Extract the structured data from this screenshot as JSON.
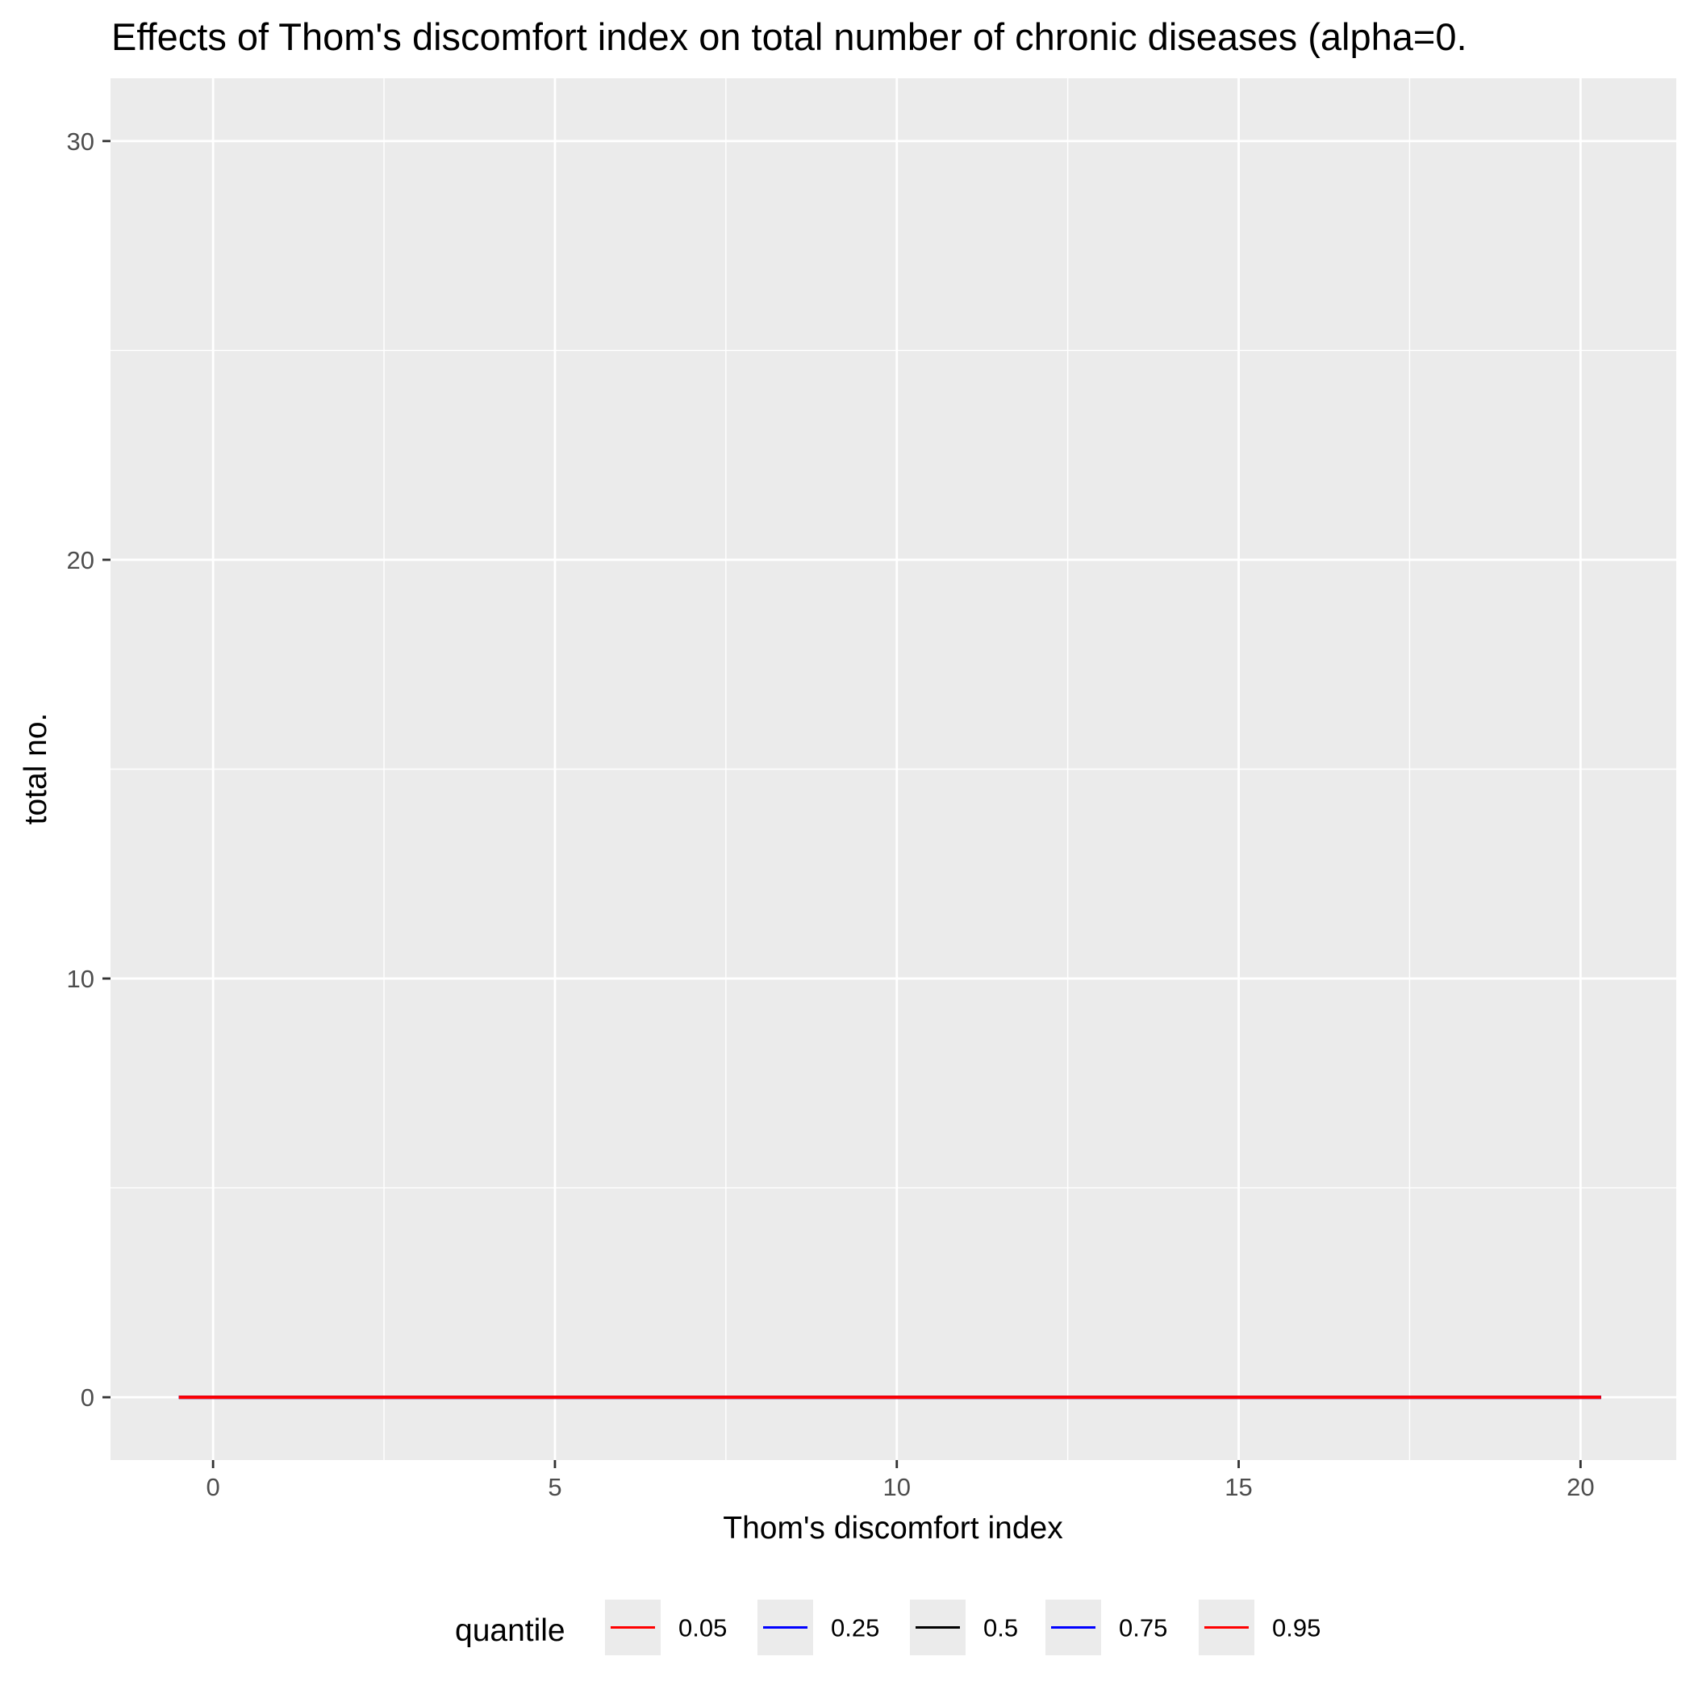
{
  "chart_data": {
    "type": "line",
    "title": "Effects of Thom's discomfort index on total number of chronic diseases (alpha=0.",
    "xlabel": "Thom's discomfort index",
    "ylabel": "total no.",
    "xlim": [
      -1.5,
      21.4
    ],
    "ylim": [
      -1.5,
      31.5
    ],
    "x_ticks": [
      0,
      5,
      10,
      15,
      20
    ],
    "y_ticks": [
      0,
      10,
      20,
      30
    ],
    "x_tick_labels": [
      "0",
      "5",
      "10",
      "15",
      "20"
    ],
    "y_tick_labels": [
      "0",
      "10",
      "20",
      "30"
    ],
    "grid": true,
    "legend": {
      "title": "quantile",
      "position": "bottom",
      "entries": [
        {
          "label": "0.05",
          "color": "#ff0000"
        },
        {
          "label": "0.25",
          "color": "#0000ff"
        },
        {
          "label": "0.5",
          "color": "#000000"
        },
        {
          "label": "0.75",
          "color": "#0000ff"
        },
        {
          "label": "0.95",
          "color": "#ff0000"
        }
      ]
    },
    "series": [
      {
        "name": "0.05",
        "color": "#ff0000",
        "x": [
          -0.5,
          20.3
        ],
        "y": [
          0,
          0
        ]
      },
      {
        "name": "0.25",
        "color": "#0000ff",
        "x": [
          -0.5,
          20.3
        ],
        "y": [
          0,
          0
        ]
      },
      {
        "name": "0.5",
        "color": "#000000",
        "x": [
          -0.5,
          20.3
        ],
        "y": [
          0,
          0
        ]
      },
      {
        "name": "0.75",
        "color": "#0000ff",
        "x": [
          -0.5,
          20.3
        ],
        "y": [
          0,
          0
        ]
      },
      {
        "name": "0.95",
        "color": "#ff0000",
        "x": [
          -0.5,
          20.3
        ],
        "y": [
          0,
          0
        ]
      }
    ],
    "colors": {
      "panel": "#ebebeb",
      "grid": "#ffffff",
      "tick": "#333333"
    }
  }
}
